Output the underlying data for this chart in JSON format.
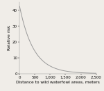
{
  "x_max": 2500,
  "y_max": 45,
  "y_ticks": [
    0,
    10,
    20,
    30,
    40
  ],
  "x_ticks": [
    0,
    500,
    1000,
    1500,
    2000,
    2500
  ],
  "x_tick_labels": [
    "0",
    "500",
    "1,000",
    "1,500",
    "2,000",
    "2,500"
  ],
  "xlabel": "Distance to wild waterfowl areas, meters",
  "ylabel": "Relative risk",
  "line_color": "#999999",
  "background_color": "#f0ede8",
  "decay_start": 42.5,
  "decay_rate": 0.0022,
  "tick_fontsize": 4.0,
  "label_fontsize": 4.2,
  "linewidth": 0.7
}
